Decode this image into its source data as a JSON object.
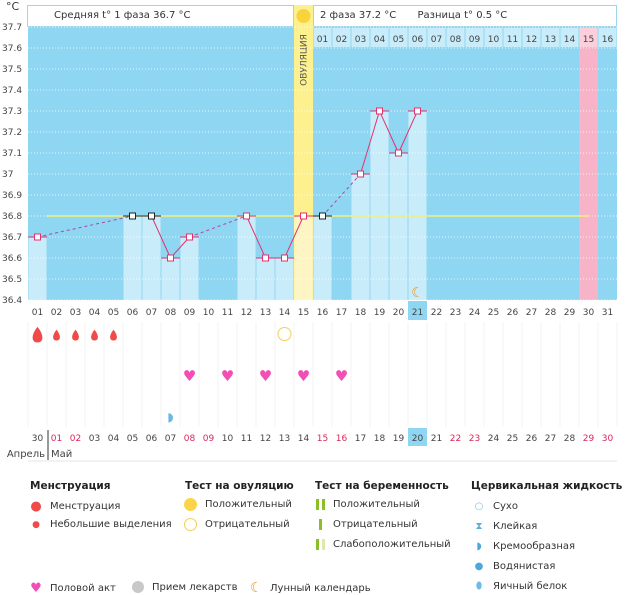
{
  "header": {
    "unit": "°C",
    "phase1": "Средняя t° 1 фаза 36.7 °C",
    "phase2": "2 фаза 37.2 °C",
    "difference": "Разница t° 0.5 °C",
    "ovulation_label": "ОВУЛЯЦИЯ"
  },
  "colors": {
    "background": "#8ed6f1",
    "bar": "#c9ecfa",
    "ovulation": "#fdf08f",
    "pink": "#f7b3c8",
    "line": "#e0336f",
    "coverline": "#f3f07a"
  },
  "chart_data": {
    "type": "line",
    "title": "",
    "ylabel": "°C",
    "ylim": [
      36.4,
      37.7
    ],
    "yticks": [
      "37.7",
      "37.6",
      "37.5",
      "37.4",
      "37.3",
      "37.2",
      "37.1",
      "37",
      "36.9",
      "36.8",
      "36.7",
      "36.6",
      "36.5",
      "36.4"
    ],
    "days": [
      "01",
      "02",
      "03",
      "04",
      "05",
      "06",
      "07",
      "08",
      "09",
      "10",
      "11",
      "12",
      "13",
      "14",
      "15",
      "16",
      "17",
      "18",
      "19",
      "20",
      "21",
      "22",
      "23",
      "24",
      "25",
      "26",
      "27",
      "28",
      "29",
      "30",
      "31"
    ],
    "temperatures": [
      36.7,
      null,
      null,
      null,
      null,
      36.8,
      36.8,
      36.6,
      36.7,
      null,
      null,
      36.8,
      36.6,
      36.6,
      36.8,
      36.8,
      null,
      37.0,
      37.3,
      37.1,
      37.3,
      null,
      null,
      null,
      null,
      null,
      null,
      null,
      null,
      null,
      null
    ],
    "excluded_days": [
      6,
      7,
      16
    ],
    "coverline": 36.8,
    "ovulation_day": 15,
    "current_day": 21,
    "expected_period_day": 30,
    "moon_day": 21,
    "luteal_days": [
      "01",
      "02",
      "03",
      "04",
      "05",
      "06",
      "07",
      "08",
      "09",
      "10",
      "11",
      "12",
      "13",
      "14",
      "15",
      "16"
    ],
    "calendar_dates": [
      "30",
      "01",
      "02",
      "03",
      "04",
      "05",
      "06",
      "07",
      "08",
      "09",
      "10",
      "11",
      "12",
      "13",
      "14",
      "15",
      "16",
      "17",
      "18",
      "19",
      "20",
      "21",
      "22",
      "23",
      "24",
      "25",
      "26",
      "27",
      "28",
      "29",
      "30"
    ],
    "red_dates_idx": [
      1,
      2,
      8,
      9,
      15,
      16,
      22,
      23,
      29,
      30
    ],
    "months": [
      "Апрель",
      "Май"
    ],
    "menstruation": {
      "1": "heavy",
      "2": "light",
      "3": "light",
      "4": "light",
      "5": "light"
    },
    "ovulation_tests": {
      "14": "negative"
    },
    "intercourse": [
      9,
      11,
      13,
      15,
      17
    ],
    "cervical_fluid": {
      "8": "creamy"
    }
  },
  "legend": {
    "menstruation": {
      "title": "Менструация",
      "items": [
        "Менструация",
        "Небольшие выделения"
      ]
    },
    "ovulation_test": {
      "title": "Тест на овуляцию",
      "items": [
        "Положительный",
        "Отрицательный"
      ]
    },
    "pregnancy_test": {
      "title": "Тест на беременность",
      "items": [
        "Положительный",
        "Отрицательный",
        "Слабоположительный"
      ]
    },
    "cervical": {
      "title": "Цервикальная жидкость",
      "items": [
        "Сухо",
        "Клейкая",
        "Кремообразная",
        "Водянистая",
        "Яичный белок"
      ]
    },
    "other": [
      "Половой акт",
      "Прием лекарств",
      "Лунный календарь"
    ]
  }
}
